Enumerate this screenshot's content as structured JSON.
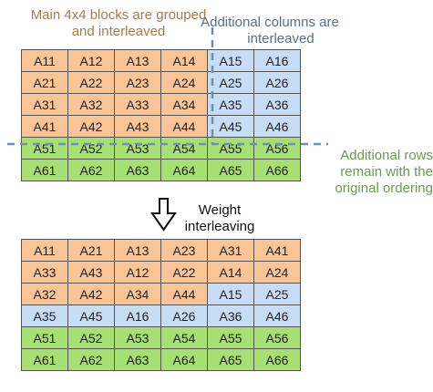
{
  "captions": {
    "main_blocks_line1": "Main 4x4 blocks are grouped",
    "main_blocks_line2": "and interleaved",
    "add_cols_line1": "Additional columns are",
    "add_cols_line2": "interleaved",
    "add_rows_line1": "Additional rows",
    "add_rows_line2": "remain with the",
    "add_rows_line3": "original ordering",
    "arrow_line1": "Weight",
    "arrow_line2": "interleaving"
  },
  "colors": {
    "orange": "#f9c597",
    "blue": "#c7ddf6",
    "green": "#a6df72",
    "divider": "#6f8fb8"
  },
  "original_matrix": [
    [
      {
        "t": "A11",
        "c": "orange"
      },
      {
        "t": "A12",
        "c": "orange"
      },
      {
        "t": "A13",
        "c": "orange"
      },
      {
        "t": "A14",
        "c": "orange"
      },
      {
        "t": "A15",
        "c": "blue"
      },
      {
        "t": "A16",
        "c": "blue"
      }
    ],
    [
      {
        "t": "A21",
        "c": "orange"
      },
      {
        "t": "A22",
        "c": "orange"
      },
      {
        "t": "A23",
        "c": "orange"
      },
      {
        "t": "A24",
        "c": "orange"
      },
      {
        "t": "A25",
        "c": "blue"
      },
      {
        "t": "A26",
        "c": "blue"
      }
    ],
    [
      {
        "t": "A31",
        "c": "orange"
      },
      {
        "t": "A32",
        "c": "orange"
      },
      {
        "t": "A33",
        "c": "orange"
      },
      {
        "t": "A34",
        "c": "orange"
      },
      {
        "t": "A35",
        "c": "blue"
      },
      {
        "t": "A36",
        "c": "blue"
      }
    ],
    [
      {
        "t": "A41",
        "c": "orange"
      },
      {
        "t": "A42",
        "c": "orange"
      },
      {
        "t": "A43",
        "c": "orange"
      },
      {
        "t": "A44",
        "c": "orange"
      },
      {
        "t": "A45",
        "c": "blue"
      },
      {
        "t": "A46",
        "c": "blue"
      }
    ],
    [
      {
        "t": "A51",
        "c": "green"
      },
      {
        "t": "A52",
        "c": "green"
      },
      {
        "t": "A53",
        "c": "green"
      },
      {
        "t": "A54",
        "c": "green"
      },
      {
        "t": "A55",
        "c": "green"
      },
      {
        "t": "A56",
        "c": "green"
      }
    ],
    [
      {
        "t": "A61",
        "c": "green"
      },
      {
        "t": "A62",
        "c": "green"
      },
      {
        "t": "A63",
        "c": "green"
      },
      {
        "t": "A64",
        "c": "green"
      },
      {
        "t": "A65",
        "c": "green"
      },
      {
        "t": "A66",
        "c": "green"
      }
    ]
  ],
  "interleaved_matrix": [
    [
      {
        "t": "A11",
        "c": "orange"
      },
      {
        "t": "A21",
        "c": "orange"
      },
      {
        "t": "A13",
        "c": "orange"
      },
      {
        "t": "A23",
        "c": "orange"
      },
      {
        "t": "A31",
        "c": "orange"
      },
      {
        "t": "A41",
        "c": "orange"
      }
    ],
    [
      {
        "t": "A33",
        "c": "orange"
      },
      {
        "t": "A43",
        "c": "orange"
      },
      {
        "t": "A12",
        "c": "orange"
      },
      {
        "t": "A22",
        "c": "orange"
      },
      {
        "t": "A14",
        "c": "orange"
      },
      {
        "t": "A24",
        "c": "orange"
      }
    ],
    [
      {
        "t": "A32",
        "c": "orange"
      },
      {
        "t": "A42",
        "c": "orange"
      },
      {
        "t": "A34",
        "c": "orange"
      },
      {
        "t": "A44",
        "c": "orange"
      },
      {
        "t": "A15",
        "c": "blue"
      },
      {
        "t": "A25",
        "c": "blue"
      }
    ],
    [
      {
        "t": "A35",
        "c": "blue"
      },
      {
        "t": "A45",
        "c": "blue"
      },
      {
        "t": "A16",
        "c": "blue"
      },
      {
        "t": "A26",
        "c": "blue"
      },
      {
        "t": "A36",
        "c": "blue"
      },
      {
        "t": "A46",
        "c": "blue"
      }
    ],
    [
      {
        "t": "A51",
        "c": "green"
      },
      {
        "t": "A52",
        "c": "green"
      },
      {
        "t": "A53",
        "c": "green"
      },
      {
        "t": "A54",
        "c": "green"
      },
      {
        "t": "A55",
        "c": "green"
      },
      {
        "t": "A56",
        "c": "green"
      }
    ],
    [
      {
        "t": "A61",
        "c": "green"
      },
      {
        "t": "A62",
        "c": "green"
      },
      {
        "t": "A63",
        "c": "green"
      },
      {
        "t": "A64",
        "c": "green"
      },
      {
        "t": "A65",
        "c": "green"
      },
      {
        "t": "A66",
        "c": "green"
      }
    ]
  ]
}
